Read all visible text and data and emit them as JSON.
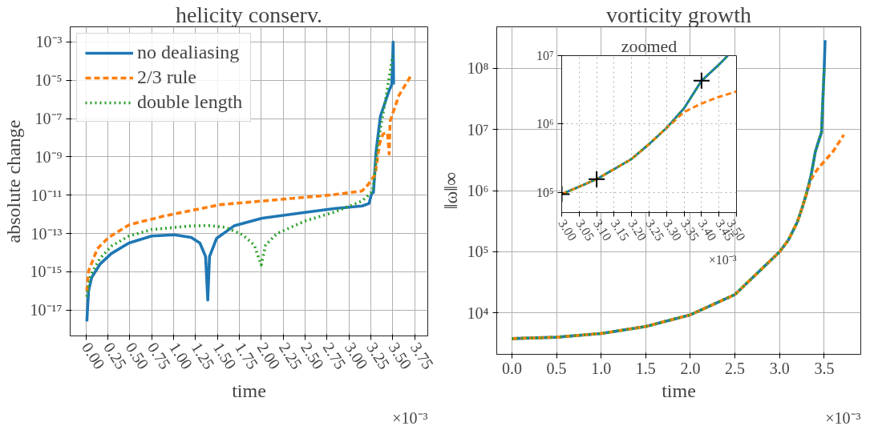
{
  "chart_data": [
    {
      "type": "line",
      "title": "helicity conserv.",
      "xlabel": "time",
      "ylabel": "absolute change",
      "annotations": [
        "×10⁻³"
      ],
      "log": "y",
      "grid": true,
      "legend": "top left",
      "xlim": [
        -0.18,
        3.9
      ],
      "ylim": [
        4.5e-19,
        0.0062
      ],
      "xticks": [
        {
          "value": 0,
          "label": "0.00"
        },
        0.25,
        {
          "value": 0.5,
          "label": "0.50"
        },
        0.75,
        {
          "value": 1,
          "label": "1.00"
        },
        1.25,
        {
          "value": 1.5,
          "label": "1.50"
        },
        1.75,
        {
          "value": 2,
          "label": "2.00"
        },
        2.25,
        {
          "value": 2.5,
          "label": "2.50"
        },
        2.75,
        {
          "value": 3,
          "label": "3.00"
        },
        3.25,
        {
          "value": 3.5,
          "label": "3.50"
        },
        3.75
      ],
      "yticks": [
        {
          "value": 1e-17,
          "label": "10⁻¹⁷"
        },
        {
          "value": 1e-15,
          "label": "10⁻¹⁵"
        },
        {
          "value": 1e-13,
          "label": "10⁻¹³"
        },
        {
          "value": 1e-11,
          "label": "10⁻¹¹"
        },
        {
          "value": 1e-09,
          "label": "10⁻⁹"
        },
        {
          "value": 1e-07,
          "label": "10⁻⁷"
        },
        {
          "value": 1e-05,
          "label": "10⁻⁵"
        },
        {
          "value": 0.001,
          "label": "10⁻³"
        }
      ],
      "series": [
        {
          "name": "no dealiasing",
          "color": "#1f77b4",
          "line_style": "solid",
          "x": [
            0.01,
            0.03,
            0.065,
            0.16,
            0.29,
            0.49,
            0.75,
            1.01,
            1.2,
            1.3,
            1.365,
            1.39,
            1.41,
            1.49,
            1.69,
            2.01,
            2.5,
            2.83,
            3.15,
            3.23,
            3.26,
            3.28,
            3.31,
            3.36,
            3.46,
            3.49,
            3.505,
            3.51
          ],
          "values": [
            2.6e-18,
            1e-16,
            5e-16,
            2.5e-15,
            9e-15,
            3.2e-14,
            7.4e-14,
            8.5e-14,
            6.3e-14,
            3.2e-14,
            6.3e-15,
            3.4e-17,
            6.3e-15,
            5.5e-14,
            2.5e-13,
            6.3e-13,
            1.26e-12,
            2e-12,
            2.75e-12,
            3.7e-12,
            1.26e-11,
            1.4e-11,
            1.9e-09,
            1.35e-07,
            3e-06,
            6e-06,
            0.001,
            6e-06
          ]
        },
        {
          "name": "2/3 rule",
          "color": "#ff7f0e",
          "line_style": "dashed",
          "x": [
            0.01,
            0.03,
            0.13,
            0.26,
            0.49,
            0.88,
            1.53,
            2.18,
            2.83,
            3.15,
            3.22,
            3.3,
            3.35,
            3.39,
            3.44,
            3.46,
            3.47,
            3.49,
            3.57,
            3.71
          ],
          "values": [
            1e-16,
            1.1e-15,
            1.6e-14,
            6.3e-14,
            2.8e-13,
            8e-13,
            3.2e-12,
            5.8e-12,
            1.07e-11,
            1.66e-11,
            3.6e-11,
            1.2e-10,
            4.8e-09,
            1.6e-08,
            1.8e-08,
            1.4e-09,
            7e-08,
            1.35e-07,
            1.6e-06,
            1.8e-05
          ]
        },
        {
          "name": "double length",
          "color": "#2ca02c",
          "line_style": "dotted",
          "x": [
            0.01,
            0.05,
            0.16,
            0.29,
            0.49,
            0.75,
            1.2,
            1.4,
            1.59,
            1.79,
            1.92,
            2.0,
            2.05,
            2.18,
            2.5,
            2.83,
            3.15,
            3.27,
            3.29,
            3.33,
            3.43,
            3.5
          ],
          "values": [
            5e-17,
            6.3e-16,
            5e-15,
            2.2e-14,
            7.4e-14,
            1.6e-13,
            2.5e-13,
            2.6e-13,
            2.1e-13,
            8.5e-14,
            2.5e-14,
            2.3e-15,
            2.5e-14,
            1e-13,
            4.5e-13,
            1.3e-12,
            5e-12,
            1.6e-11,
            6.6e-11,
            4.8e-09,
            2.1e-06,
            0.0002
          ]
        }
      ]
    },
    {
      "type": "line",
      "title": "vorticity growth",
      "xlabel": "time",
      "ylabel": "‖ω‖∞",
      "annotations": [
        "×10⁻³"
      ],
      "log": "y",
      "grid": true,
      "xlim": [
        -0.17,
        3.91
      ],
      "ylim": [
        2100,
        480000000.0
      ],
      "xticks": [
        {
          "value": 0,
          "label": "0.0"
        },
        0.5,
        {
          "value": 1,
          "label": "1.0"
        },
        1.5,
        {
          "value": 2,
          "label": "2.0"
        },
        2.5,
        {
          "value": 3,
          "label": "3.0"
        },
        3.5
      ],
      "yticks": [
        {
          "value": 10000.0,
          "label": "10⁴"
        },
        {
          "value": 100000.0,
          "label": "10⁵"
        },
        {
          "value": 1000000.0,
          "label": "10⁶"
        },
        {
          "value": 10000000.0,
          "label": "10⁷"
        },
        {
          "value": 100000000.0,
          "label": "10⁸"
        }
      ],
      "series": [
        {
          "color": "#1f77b4",
          "line_style": "solid",
          "x": [
            0,
            0.5,
            1.0,
            1.5,
            2.0,
            2.5,
            3.0,
            3.1,
            3.2,
            3.25,
            3.3,
            3.35,
            3.4,
            3.45,
            3.47,
            3.5,
            3.51
          ],
          "values": [
            3800,
            4000,
            4600,
            6000,
            9300,
            20000,
            100000,
            157000,
            310000,
            510000,
            880000,
            1700000.0,
            4300000.0,
            7400000.0,
            9000000.0,
            100000000.0,
            290000000.0
          ]
        },
        {
          "color": "#ff7f0e",
          "line_style": "dashed",
          "x": [
            0,
            0.5,
            1.0,
            1.5,
            2.0,
            2.5,
            3.0,
            3.1,
            3.2,
            3.25,
            3.3,
            3.35,
            3.4,
            3.45,
            3.5,
            3.6,
            3.72
          ],
          "values": [
            3800,
            4000,
            4600,
            6000,
            9300,
            20000,
            100000,
            157000,
            310000,
            510000,
            880000,
            1500000.0,
            2000000.0,
            2500000.0,
            3000000.0,
            4400000.0,
            8200000.0
          ]
        },
        {
          "color": "#2ca02c",
          "line_style": "dotted",
          "x": [
            0,
            0.5,
            1.0,
            1.5,
            2.0,
            2.5,
            3.0,
            3.1,
            3.2,
            3.25,
            3.3,
            3.35,
            3.4,
            3.45,
            3.47,
            3.5
          ],
          "values": [
            3800,
            4000,
            4600,
            6000,
            9300,
            20000,
            100000,
            157000,
            310000,
            510000,
            880000,
            1700000.0,
            4300000.0,
            7400000.0,
            9000000.0,
            100000000.0
          ]
        }
      ]
    },
    {
      "type": "line",
      "title": "zoomed",
      "annotations": [
        "×10⁻³"
      ],
      "log": "y",
      "grid": true,
      "xlim": [
        3.0,
        3.5
      ],
      "ylim": [
        51000,
        10000000.0
      ],
      "xticks": [
        {
          "value": 3,
          "label": "3.00"
        },
        3.05,
        {
          "value": 3.1,
          "label": "3.10"
        },
        3.15,
        {
          "value": 3.2,
          "label": "3.20"
        },
        3.25,
        {
          "value": 3.3,
          "label": "3.30"
        },
        3.35,
        {
          "value": 3.4,
          "label": "3.40"
        },
        3.45,
        {
          "value": 3.5,
          "label": "3.50"
        }
      ],
      "yticks": [
        {
          "value": 100000.0,
          "label": "10⁵"
        },
        {
          "value": 1000000.0,
          "label": "10⁶"
        },
        {
          "value": 10000000.0,
          "label": "10⁷"
        }
      ],
      "series": [
        {
          "color": "#1f77b4",
          "line_style": "solid",
          "x": [
            3.0,
            3.05,
            3.1,
            3.15,
            3.2,
            3.25,
            3.3,
            3.35,
            3.4,
            3.45,
            3.475
          ],
          "values": [
            95000,
            122000,
            157000,
            220000,
            310000,
            510000,
            880000,
            1700000.0,
            4300000.0,
            7400000.0,
            10000000.0
          ]
        },
        {
          "color": "#ff7f0e",
          "line_style": "dashed",
          "x": [
            3.0,
            3.05,
            3.1,
            3.15,
            3.2,
            3.25,
            3.3,
            3.35,
            3.4,
            3.45,
            3.5
          ],
          "values": [
            95000,
            122000,
            157000,
            220000,
            310000,
            510000,
            880000,
            1500000.0,
            2000000.0,
            2500000.0,
            3000000.0
          ]
        },
        {
          "color": "#2ca02c",
          "line_style": "dotted",
          "x": [
            3.0,
            3.05,
            3.1,
            3.15,
            3.2,
            3.25,
            3.3,
            3.35,
            3.4,
            3.45,
            3.475
          ],
          "values": [
            95000,
            122000,
            157000,
            220000,
            310000,
            510000,
            880000,
            1700000.0,
            4300000.0,
            7400000.0,
            10000000.0
          ]
        },
        {
          "type": "scatter",
          "marker": "cross",
          "color": "#000000",
          "x": [
            3.0,
            3.1,
            3.4
          ],
          "values": [
            95000,
            157000,
            4300000.0
          ]
        }
      ]
    }
  ]
}
